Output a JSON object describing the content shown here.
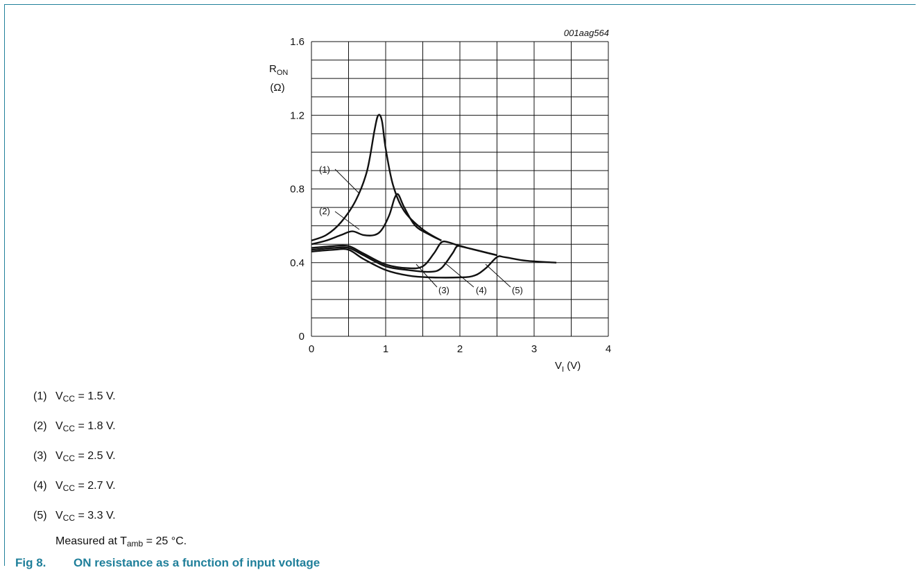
{
  "chart_data": {
    "type": "line",
    "figure_id": "001aag564",
    "y_label_main": "R",
    "y_label_sub": "ON",
    "y_unit": "(Ω)",
    "x_label_main": "V",
    "x_label_sub": "I",
    "x_unit": "(V)",
    "xlim": [
      0,
      4
    ],
    "ylim": [
      0,
      1.6
    ],
    "x_ticks": [
      0,
      1,
      2,
      3,
      4
    ],
    "x_tick_labels": [
      "0",
      "1",
      "2",
      "3",
      "4"
    ],
    "y_ticks": [
      0,
      0.4,
      0.8,
      1.2,
      1.6
    ],
    "y_tick_labels": [
      "0",
      "0.4",
      "0.8",
      "1.2",
      "1.6"
    ],
    "grid": true,
    "series": [
      {
        "name": "(1)",
        "points": [
          [
            0,
            0.52
          ],
          [
            0.2,
            0.55
          ],
          [
            0.4,
            0.62
          ],
          [
            0.6,
            0.74
          ],
          [
            0.75,
            0.9
          ],
          [
            0.85,
            1.12
          ],
          [
            0.9,
            1.2
          ],
          [
            0.95,
            1.17
          ],
          [
            1.0,
            1.02
          ],
          [
            1.1,
            0.82
          ],
          [
            1.25,
            0.68
          ],
          [
            1.5,
            0.58
          ],
          [
            1.75,
            0.52
          ]
        ]
      },
      {
        "name": "(2)",
        "points": [
          [
            0,
            0.5
          ],
          [
            0.2,
            0.52
          ],
          [
            0.4,
            0.55
          ],
          [
            0.55,
            0.57
          ],
          [
            0.7,
            0.55
          ],
          [
            0.85,
            0.55
          ],
          [
            0.95,
            0.58
          ],
          [
            1.05,
            0.66
          ],
          [
            1.12,
            0.75
          ],
          [
            1.17,
            0.77
          ],
          [
            1.25,
            0.7
          ],
          [
            1.4,
            0.6
          ],
          [
            1.6,
            0.55
          ],
          [
            1.75,
            0.52
          ]
        ]
      },
      {
        "name": "(3)",
        "points": [
          [
            0,
            0.48
          ],
          [
            0.3,
            0.49
          ],
          [
            0.5,
            0.49
          ],
          [
            0.7,
            0.45
          ],
          [
            1.0,
            0.39
          ],
          [
            1.3,
            0.37
          ],
          [
            1.5,
            0.38
          ],
          [
            1.65,
            0.45
          ],
          [
            1.75,
            0.51
          ],
          [
            1.85,
            0.51
          ],
          [
            2.0,
            0.49
          ],
          [
            2.2,
            0.47
          ],
          [
            2.5,
            0.44
          ]
        ]
      },
      {
        "name": "(4)",
        "points": [
          [
            0,
            0.47
          ],
          [
            0.3,
            0.48
          ],
          [
            0.5,
            0.48
          ],
          [
            0.7,
            0.44
          ],
          [
            1.0,
            0.38
          ],
          [
            1.3,
            0.36
          ],
          [
            1.6,
            0.35
          ],
          [
            1.75,
            0.37
          ],
          [
            1.9,
            0.45
          ],
          [
            1.97,
            0.49
          ],
          [
            2.1,
            0.48
          ],
          [
            2.3,
            0.46
          ],
          [
            2.5,
            0.44
          ]
        ]
      },
      {
        "name": "(5)",
        "points": [
          [
            0,
            0.46
          ],
          [
            0.3,
            0.47
          ],
          [
            0.5,
            0.47
          ],
          [
            0.7,
            0.42
          ],
          [
            1.0,
            0.36
          ],
          [
            1.3,
            0.33
          ],
          [
            1.6,
            0.32
          ],
          [
            2.0,
            0.32
          ],
          [
            2.2,
            0.33
          ],
          [
            2.35,
            0.37
          ],
          [
            2.5,
            0.43
          ],
          [
            2.6,
            0.43
          ],
          [
            2.9,
            0.41
          ],
          [
            3.3,
            0.4
          ]
        ]
      }
    ]
  },
  "notes": [
    {
      "num": "(1)",
      "v": "V",
      "sub": "CC",
      "rest": " = 1.5 V."
    },
    {
      "num": "(2)",
      "v": "V",
      "sub": "CC",
      "rest": " = 1.8 V."
    },
    {
      "num": "(3)",
      "v": "V",
      "sub": "CC",
      "rest": " = 2.5 V."
    },
    {
      "num": "(4)",
      "v": "V",
      "sub": "CC",
      "rest": " = 2.7 V."
    },
    {
      "num": "(5)",
      "v": "V",
      "sub": "CC",
      "rest": " = 3.3 V."
    }
  ],
  "measured": {
    "pre": "Measured at T",
    "sub": "amb",
    "post": " = 25 °C."
  },
  "caption": {
    "fig": "Fig 8.",
    "title": "ON resistance as a function of input voltage"
  }
}
